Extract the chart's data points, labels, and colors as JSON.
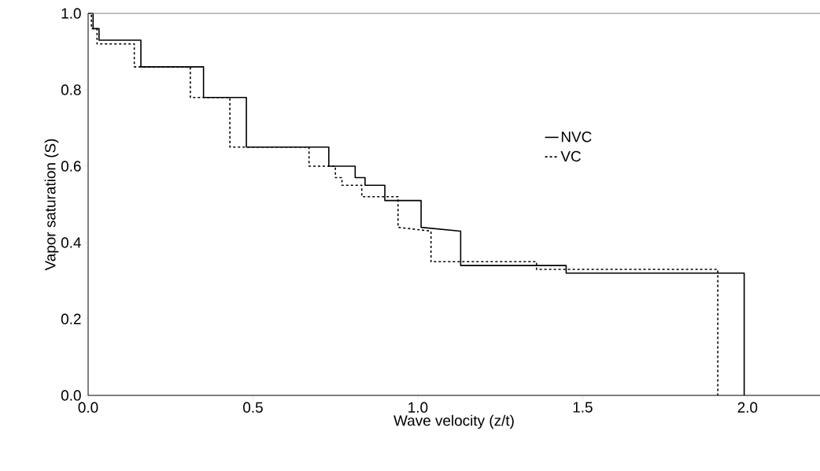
{
  "chart_data": {
    "type": "line",
    "xlabel": "Wave velocity (z/t)",
    "ylabel": "Vapor saturation (S)",
    "xlim": [
      0,
      2.22
    ],
    "ylim": [
      0,
      1.0
    ],
    "xticks": [
      {
        "value": 0,
        "label": "0.0"
      },
      {
        "value": 0.5,
        "label": "0.5"
      },
      {
        "value": 1,
        "label": "1.0"
      },
      {
        "value": 1.5,
        "label": "1.5"
      },
      {
        "value": 2,
        "label": "2.0"
      }
    ],
    "yticks": [
      {
        "value": 0,
        "label": "0.0"
      },
      {
        "value": 0.2,
        "label": "0.2"
      },
      {
        "value": 0.4,
        "label": "0.4"
      },
      {
        "value": 0.6,
        "label": "0.6"
      },
      {
        "value": 0.8,
        "label": "0.8"
      },
      {
        "value": 1,
        "label": "1.0"
      }
    ],
    "grid": false,
    "legend": "right",
    "marker": "none",
    "series": [
      {
        "name": "NVC",
        "color": "#000000",
        "line_style": "solid",
        "x": [
          0,
          0.015,
          0.015,
          0.033,
          0.033,
          0.16,
          0.16,
          0.35,
          0.35,
          0.48,
          0.48,
          0.73,
          0.73,
          0.81,
          0.81,
          0.84,
          0.84,
          0.9,
          0.9,
          1.01,
          1.01,
          1.13,
          1.13,
          1.21,
          1.21,
          1.45,
          1.45,
          1.99,
          1.99
        ],
        "values": [
          1.0,
          1.0,
          0.96,
          0.96,
          0.93,
          0.93,
          0.86,
          0.86,
          0.78,
          0.78,
          0.65,
          0.65,
          0.6,
          0.6,
          0.57,
          0.57,
          0.55,
          0.55,
          0.51,
          0.51,
          0.44,
          0.43,
          0.34,
          0.34,
          0.34,
          0.34,
          0.32,
          0.32,
          0
        ]
      },
      {
        "name": "VC",
        "color": "#000000",
        "line_style": "dashed",
        "x": [
          0,
          0.01,
          0.01,
          0.027,
          0.027,
          0.14,
          0.14,
          0.31,
          0.31,
          0.43,
          0.43,
          0.67,
          0.67,
          0.75,
          0.75,
          0.77,
          0.77,
          0.83,
          0.83,
          0.94,
          0.94,
          1.04,
          1.04,
          1.13,
          1.13,
          1.36,
          1.36,
          1.91,
          1.91
        ],
        "values": [
          1.0,
          1.0,
          0.96,
          0.96,
          0.92,
          0.92,
          0.86,
          0.86,
          0.78,
          0.78,
          0.65,
          0.65,
          0.6,
          0.6,
          0.57,
          0.57,
          0.55,
          0.55,
          0.52,
          0.52,
          0.44,
          0.43,
          0.35,
          0.35,
          0.35,
          0.35,
          0.33,
          0.33,
          0
        ]
      }
    ]
  }
}
